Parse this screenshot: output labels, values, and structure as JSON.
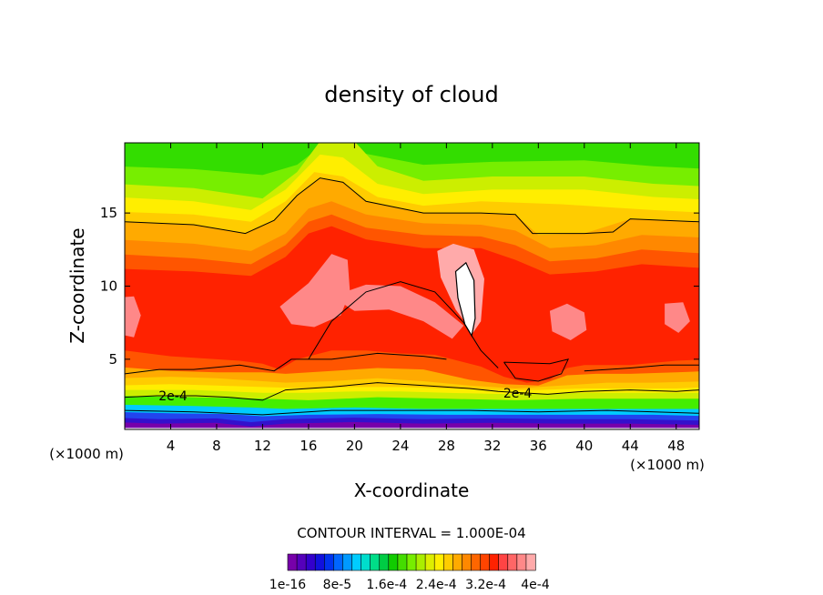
{
  "chart_data": {
    "type": "heatmap",
    "title": "density of cloud",
    "xlabel": "X-coordinate",
    "ylabel": "Z-coordinate",
    "x_unit": "(×1000 m)",
    "x_unit_right": "(×1000 m)",
    "xlim": [
      0,
      50
    ],
    "ylim": [
      0.2,
      19.8
    ],
    "x_ticks": [
      4,
      8,
      12,
      16,
      20,
      24,
      28,
      32,
      36,
      40,
      44,
      48
    ],
    "y_ticks": [
      5,
      10,
      15
    ],
    "contour_interval_label": "CONTOUR INTERVAL = 1.000E-04",
    "contour_labels": [
      {
        "text": "2e-4",
        "x": 4.2,
        "z": 2.5
      },
      {
        "text": "2e-4",
        "x": 34.2,
        "z": 2.7
      }
    ],
    "colorbar": {
      "colors": [
        "#7700aa",
        "#5500bb",
        "#3300cc",
        "#1111dd",
        "#0033ee",
        "#0066ff",
        "#0099ff",
        "#00ccff",
        "#00ddcc",
        "#00dd88",
        "#00cc44",
        "#11cc00",
        "#44dd00",
        "#77ee00",
        "#aaee00",
        "#ddee00",
        "#ffee00",
        "#ffcc00",
        "#ffaa00",
        "#ff8800",
        "#ff6600",
        "#ff4400",
        "#ff2200",
        "#ff4444",
        "#ff6666",
        "#ff8888",
        "#ffaaaa"
      ],
      "tick_labels": [
        "1e-16",
        "8e-5",
        "1.6e-4",
        "2.4e-4",
        "3.2e-4",
        "4e-4"
      ]
    },
    "palette": {
      "upper": "#44ee00",
      "green2": "#77ee00",
      "yellowgreen": "#ccee00",
      "yellow": "#ffee00",
      "gold": "#ffcc00",
      "orange": "#ffaa00",
      "orange2": "#ff8800",
      "redorange": "#ff5500",
      "red": "#ff2200",
      "pink": "#ff8888",
      "lightpink": "#ffaaaa",
      "cyan": "#00ccff",
      "blue": "#2244ee",
      "darkblue": "#3311cc",
      "purple": "#7700aa"
    }
  }
}
